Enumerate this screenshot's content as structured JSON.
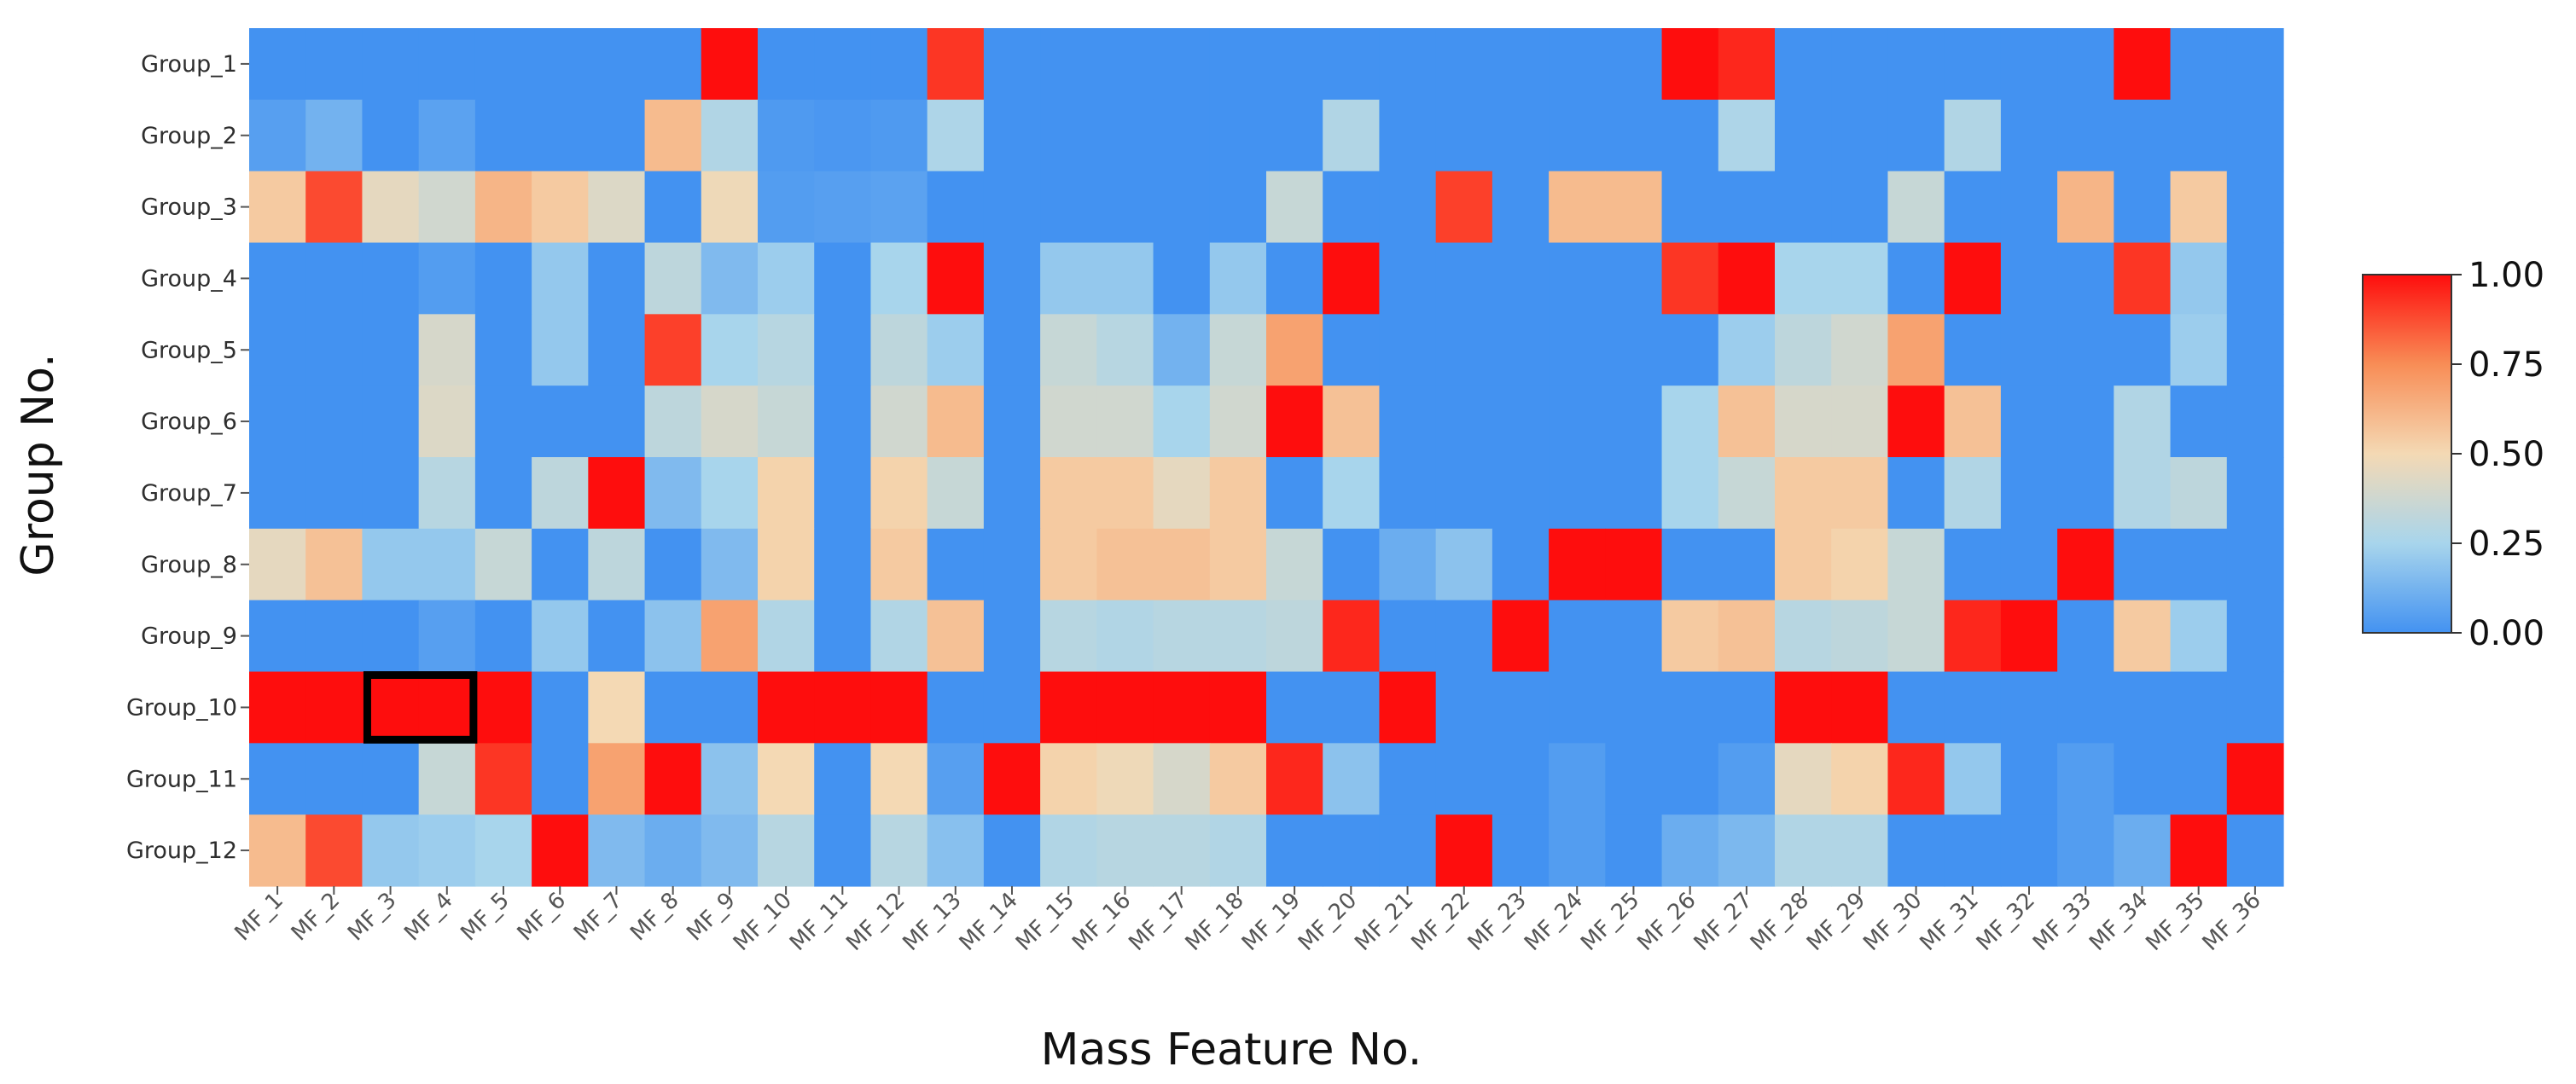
{
  "chart_data": {
    "type": "heatmap",
    "title": "",
    "xlabel": "Mass Feature No.",
    "ylabel": "Group No.",
    "x_categories": [
      "MF_1",
      "MF_2",
      "MF_3",
      "MF_4",
      "MF_5",
      "MF_6",
      "MF_7",
      "MF_8",
      "MF_9",
      "MF_10",
      "MF_11",
      "MF_12",
      "MF_13",
      "MF_14",
      "MF_15",
      "MF_16",
      "MF_17",
      "MF_18",
      "MF_19",
      "MF_20",
      "MF_21",
      "MF_22",
      "MF_23",
      "MF_24",
      "MF_25",
      "MF_26",
      "MF_27",
      "MF_28",
      "MF_29",
      "MF_30",
      "MF_31",
      "MF_32",
      "MF_33",
      "MF_34",
      "MF_35",
      "MF_36"
    ],
    "y_categories": [
      "Group_1",
      "Group_2",
      "Group_3",
      "Group_4",
      "Group_5",
      "Group_6",
      "Group_7",
      "Group_8",
      "Group_9",
      "Group_10",
      "Group_11",
      "Group_12"
    ],
    "values": [
      [
        0,
        0,
        0,
        0,
        0,
        0,
        0,
        0,
        1,
        0,
        0,
        0,
        0.92,
        0,
        0,
        0,
        0,
        0,
        0,
        0,
        0,
        0,
        0,
        0,
        0,
        1,
        0.95,
        0,
        0,
        0,
        0,
        0,
        0,
        1,
        0,
        0
      ],
      [
        0.05,
        0.12,
        0,
        0.06,
        0,
        0,
        0,
        0.6,
        0.28,
        0.03,
        0.02,
        0.03,
        0.27,
        0,
        0,
        0,
        0,
        0,
        0,
        0.28,
        0,
        0,
        0,
        0,
        0,
        0,
        0.27,
        0,
        0,
        0,
        0.28,
        0,
        0,
        0,
        0,
        0
      ],
      [
        0.55,
        0.88,
        0.45,
        0.38,
        0.62,
        0.55,
        0.42,
        0,
        0.48,
        0.04,
        0.05,
        0.06,
        0,
        0,
        0,
        0,
        0,
        0,
        0.35,
        0,
        0,
        0.9,
        0,
        0.6,
        0.6,
        0,
        0,
        0,
        0,
        0.35,
        0,
        0,
        0.62,
        0,
        0.55,
        0
      ],
      [
        0,
        0,
        0,
        0.04,
        0,
        0.2,
        0,
        0.32,
        0.15,
        0.22,
        0,
        0.25,
        1,
        0,
        0.2,
        0.2,
        0,
        0.2,
        0,
        1,
        0,
        0,
        0,
        0,
        0,
        0.92,
        1,
        0.25,
        0.25,
        0,
        1,
        0,
        0,
        0.92,
        0.2,
        0
      ],
      [
        0,
        0,
        0,
        0.4,
        0,
        0.2,
        0,
        0.9,
        0.25,
        0.3,
        0,
        0.32,
        0.22,
        0,
        0.35,
        0.3,
        0.12,
        0.35,
        0.68,
        0,
        0,
        0,
        0,
        0,
        0,
        0,
        0.22,
        0.32,
        0.38,
        0.68,
        0,
        0,
        0,
        0,
        0.22,
        0
      ],
      [
        0,
        0,
        0,
        0.42,
        0,
        0,
        0,
        0.32,
        0.4,
        0.35,
        0,
        0.38,
        0.6,
        0,
        0.38,
        0.38,
        0.25,
        0.38,
        1,
        0.58,
        0,
        0,
        0,
        0,
        0,
        0.25,
        0.58,
        0.4,
        0.4,
        1,
        0.58,
        0,
        0,
        0.28,
        0,
        0
      ],
      [
        0,
        0,
        0,
        0.3,
        0,
        0.32,
        1,
        0.15,
        0.25,
        0.52,
        0,
        0.52,
        0.35,
        0,
        0.55,
        0.55,
        0.45,
        0.55,
        0,
        0.25,
        0,
        0,
        0,
        0,
        0,
        0.25,
        0.35,
        0.55,
        0.55,
        0,
        0.28,
        0,
        0,
        0.28,
        0.32,
        0
      ],
      [
        0.45,
        0.58,
        0.2,
        0.2,
        0.35,
        0,
        0.32,
        0,
        0.15,
        0.52,
        0,
        0.55,
        0,
        0,
        0.55,
        0.58,
        0.58,
        0.55,
        0.35,
        0,
        0.1,
        0.18,
        0,
        1,
        1,
        0,
        0,
        0.55,
        0.52,
        0.35,
        0,
        0,
        1,
        0,
        0,
        0
      ],
      [
        0,
        0,
        0,
        0.05,
        0,
        0.2,
        0,
        0.18,
        0.68,
        0.28,
        0,
        0.28,
        0.58,
        0,
        0.3,
        0.28,
        0.3,
        0.3,
        0.32,
        0.95,
        0,
        0,
        1,
        0,
        0,
        0.55,
        0.58,
        0.3,
        0.32,
        0.35,
        0.95,
        1,
        0,
        0.55,
        0.22,
        0
      ],
      [
        1,
        1,
        1,
        1,
        1,
        0,
        0.5,
        0,
        0,
        1,
        1,
        1,
        0,
        0,
        1,
        1,
        1,
        1,
        0,
        0,
        1,
        0,
        0,
        0,
        0,
        0,
        0,
        1,
        1,
        0,
        0,
        0,
        0,
        0,
        0,
        0
      ],
      [
        0,
        0,
        0,
        0.35,
        0.92,
        0,
        0.68,
        1,
        0.18,
        0.5,
        0,
        0.5,
        0.05,
        1,
        0.52,
        0.48,
        0.4,
        0.55,
        0.95,
        0.18,
        0,
        0,
        0,
        0.04,
        0,
        0,
        0.04,
        0.45,
        0.52,
        0.95,
        0.2,
        0,
        0.04,
        0,
        0,
        1
      ],
      [
        0.6,
        0.88,
        0.2,
        0.22,
        0.25,
        1,
        0.15,
        0.1,
        0.15,
        0.3,
        0,
        0.3,
        0.17,
        0,
        0.28,
        0.3,
        0.3,
        0.28,
        0,
        0,
        0,
        1,
        0,
        0.04,
        0,
        0.1,
        0.14,
        0.28,
        0.28,
        0,
        0,
        0,
        0.04,
        0.1,
        1,
        0
      ]
    ],
    "zlim": [
      0,
      1
    ],
    "colorscale": [
      [
        0,
        "#4392f1"
      ],
      [
        0.25,
        "#a8d5ec"
      ],
      [
        0.5,
        "#f4d9b4"
      ],
      [
        0.75,
        "#f88d56"
      ],
      [
        1,
        "#fe0d0d"
      ]
    ],
    "colorbar_ticks": [
      "0.00",
      "0.25",
      "0.50",
      "0.75",
      "1.00"
    ],
    "highlight": {
      "x_from": "MF_3",
      "x_to": "MF_4",
      "y": "Group_10",
      "color": "#000000"
    },
    "grid": false,
    "legend": "right"
  }
}
